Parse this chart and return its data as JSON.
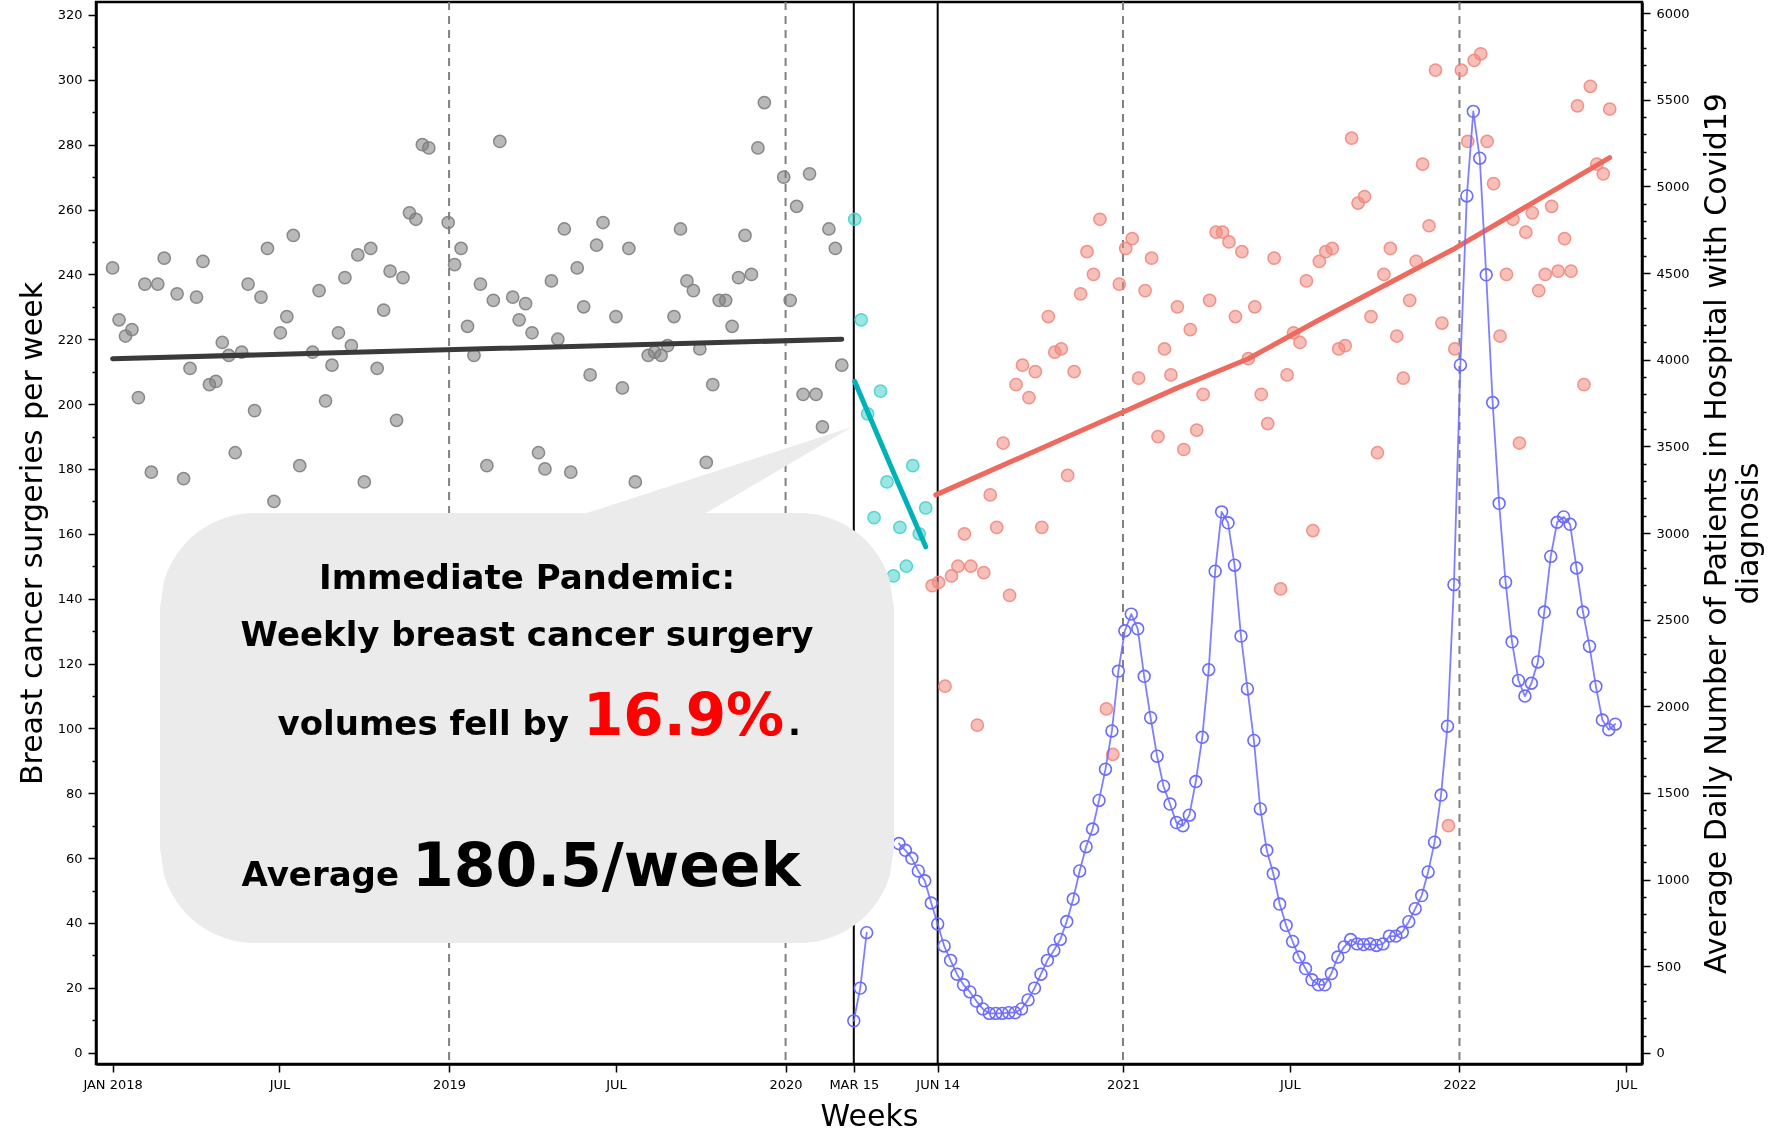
{
  "chart_data": {
    "type": "scatter",
    "xlabel": "Weeks",
    "ylabel": "Breast cancer surgeries per week",
    "y2label": "Average Daily Number of Patients in Hospital with Covid19 diagnosis",
    "annotations": [
      "Immediate Pandemic:",
      "Weekly breast cancer surgery",
      "volumes fell by",
      "16.9%",
      ".",
      "Average",
      "180.5/week"
    ],
    "xlim": [
      "2017-12-14",
      "2022-07-18"
    ],
    "xticks": [
      {
        "value": "2018-01-01",
        "label": "JAN 2018"
      },
      {
        "value": "2018-07-01",
        "label": "JUL"
      },
      {
        "value": "2019-01-01",
        "label": "2019"
      },
      {
        "value": "2019-07-01",
        "label": "JUL"
      },
      {
        "value": "2020-01-01",
        "label": "2020"
      },
      {
        "value": "2020-03-15",
        "label": "MAR 15"
      },
      {
        "value": "2020-06-14",
        "label": "JUN 14"
      },
      {
        "value": "2021-01-01",
        "label": "2021"
      },
      {
        "value": "2021-07-01",
        "label": "JUL"
      },
      {
        "value": "2022-01-01",
        "label": "2022"
      },
      {
        "value": "2022-07-01",
        "label": "JUL"
      }
    ],
    "ylim": [
      -3.5,
      324
    ],
    "yticks": [
      0,
      {
        "value": 10,
        "label": null
      },
      20,
      {
        "value": 30,
        "label": null
      },
      40,
      {
        "value": 50,
        "label": null
      },
      60,
      {
        "value": 70,
        "label": null
      },
      80,
      {
        "value": 90,
        "label": null
      },
      100,
      {
        "value": 110,
        "label": null
      },
      120,
      {
        "value": 130,
        "label": null
      },
      140,
      {
        "value": 150,
        "label": null
      },
      160,
      {
        "value": 170,
        "label": null
      },
      180,
      {
        "value": 190,
        "label": null
      },
      200,
      {
        "value": 210,
        "label": null
      },
      220,
      {
        "value": 230,
        "label": null
      },
      240,
      {
        "value": 250,
        "label": null
      },
      260,
      {
        "value": 270,
        "label": null
      },
      280,
      {
        "value": 290,
        "label": null
      },
      300,
      {
        "value": 310,
        "label": null
      },
      320
    ],
    "y2lim": [
      -64,
      6064
    ],
    "y2ticks": [
      0,
      {
        "value": 100,
        "label": null
      },
      {
        "value": 200,
        "label": null
      },
      {
        "value": 300,
        "label": null
      },
      {
        "value": 400,
        "label": null
      },
      500,
      {
        "value": 600,
        "label": null
      },
      {
        "value": 700,
        "label": null
      },
      {
        "value": 800,
        "label": null
      },
      {
        "value": 900,
        "label": null
      },
      1000,
      {
        "value": 1100,
        "label": null
      },
      {
        "value": 1200,
        "label": null
      },
      {
        "value": 1300,
        "label": null
      },
      {
        "value": 1400,
        "label": null
      },
      1500,
      {
        "value": 1600,
        "label": null
      },
      {
        "value": 1700,
        "label": null
      },
      {
        "value": 1800,
        "label": null
      },
      {
        "value": 1900,
        "label": null
      },
      2000,
      {
        "value": 2100,
        "label": null
      },
      {
        "value": 2200,
        "label": null
      },
      {
        "value": 2300,
        "label": null
      },
      {
        "value": 2400,
        "label": null
      },
      2500,
      {
        "value": 2600,
        "label": null
      },
      {
        "value": 2700,
        "label": null
      },
      {
        "value": 2800,
        "label": null
      },
      {
        "value": 2900,
        "label": null
      },
      3000,
      {
        "value": 3100,
        "label": null
      },
      {
        "value": 3200,
        "label": null
      },
      {
        "value": 3300,
        "label": null
      },
      {
        "value": 3400,
        "label": null
      },
      3500,
      {
        "value": 3600,
        "label": null
      },
      {
        "value": 3700,
        "label": null
      },
      {
        "value": 3800,
        "label": null
      },
      {
        "value": 3900,
        "label": null
      },
      4000,
      {
        "value": 4100,
        "label": null
      },
      {
        "value": 4200,
        "label": null
      },
      {
        "value": 4300,
        "label": null
      },
      {
        "value": 4400,
        "label": null
      },
      4500,
      {
        "value": 4600,
        "label": null
      },
      {
        "value": 4700,
        "label": null
      },
      {
        "value": 4800,
        "label": null
      },
      {
        "value": 4900,
        "label": null
      },
      5000,
      {
        "value": 5100,
        "label": null
      },
      {
        "value": 5200,
        "label": null
      },
      {
        "value": 5300,
        "label": null
      },
      {
        "value": 5400,
        "label": null
      },
      5500,
      {
        "value": 5600,
        "label": null
      },
      {
        "value": 5700,
        "label": null
      },
      {
        "value": 5800,
        "label": null
      },
      {
        "value": 5900,
        "label": null
      },
      6000
    ],
    "ref_lines": [
      {
        "axis": "x",
        "value": "2019-01-01",
        "color": "#808080",
        "line_style": "dashed"
      },
      {
        "axis": "x",
        "value": "2020-01-01",
        "color": "#808080",
        "line_style": "dashed"
      },
      {
        "axis": "x",
        "value": "2021-01-01",
        "color": "#808080",
        "line_style": "dashed"
      },
      {
        "axis": "x",
        "value": "2022-01-01",
        "color": "#808080",
        "line_style": "dashed"
      },
      {
        "axis": "x",
        "value": "2020-03-15",
        "color": "#000000",
        "line_style": "solid"
      },
      {
        "axis": "x",
        "value": "2020-06-14",
        "color": "#000000",
        "line_style": "solid"
      }
    ],
    "series": [
      {
        "color": "#7f7f7f",
        "marker": "circle",
        "x": [
          "2018-01-01",
          "2018-01-08",
          "2018-01-15",
          "2018-01-22",
          "2018-01-29",
          "2018-02-05",
          "2018-02-12",
          "2018-02-19",
          "2018-02-26",
          "2018-03-12",
          "2018-03-19",
          "2018-03-26",
          "2018-04-02",
          "2018-04-09",
          "2018-04-16",
          "2018-04-23",
          "2018-04-30",
          "2018-05-07",
          "2018-05-14",
          "2018-05-21",
          "2018-05-28",
          "2018-06-04",
          "2018-06-11",
          "2018-06-18",
          "2018-06-25",
          "2018-07-02",
          "2018-07-09",
          "2018-07-16",
          "2018-07-23",
          "2018-08-06",
          "2018-08-13",
          "2018-08-20",
          "2018-08-27",
          "2018-09-03",
          "2018-09-10",
          "2018-09-17",
          "2018-09-24",
          "2018-10-01",
          "2018-10-08",
          "2018-10-15",
          "2018-10-22",
          "2018-10-29",
          "2018-11-05",
          "2018-11-12",
          "2018-11-19",
          "2018-11-26",
          "2018-12-03",
          "2018-12-10",
          "2018-12-31",
          "2019-01-07",
          "2019-01-14",
          "2019-01-21",
          "2019-01-28",
          "2019-02-04",
          "2019-02-11",
          "2019-02-18",
          "2019-02-25",
          "2019-03-11",
          "2019-03-18",
          "2019-03-25",
          "2019-04-01",
          "2019-04-08",
          "2019-04-15",
          "2019-04-22",
          "2019-04-29",
          "2019-05-06",
          "2019-05-13",
          "2019-05-20",
          "2019-05-27",
          "2019-06-03",
          "2019-06-10",
          "2019-06-17",
          "2019-07-01",
          "2019-07-08",
          "2019-07-15",
          "2019-07-22",
          "2019-08-05",
          "2019-08-12",
          "2019-08-19",
          "2019-08-26",
          "2019-09-02",
          "2019-09-09",
          "2019-09-16",
          "2019-09-23",
          "2019-09-30",
          "2019-10-07",
          "2019-10-14",
          "2019-10-21",
          "2019-10-28",
          "2019-11-04",
          "2019-11-11",
          "2019-11-18",
          "2019-11-25",
          "2019-12-02",
          "2019-12-09",
          "2019-12-30",
          "2020-01-06",
          "2020-01-13",
          "2020-01-20",
          "2020-01-27",
          "2020-02-03",
          "2020-02-10",
          "2020-02-17",
          "2020-02-24",
          "2020-03-02"
        ],
        "values": [
          242,
          226,
          221,
          223,
          202,
          237,
          179,
          237,
          245,
          234,
          177,
          211,
          233,
          244,
          206,
          207,
          219,
          215,
          185,
          216,
          237,
          198,
          233,
          248,
          170,
          222,
          227,
          252,
          181,
          216,
          235,
          201,
          212,
          222,
          239,
          218,
          246,
          176,
          248,
          211,
          229,
          241,
          195,
          239,
          259,
          257,
          280,
          279,
          256,
          243,
          248,
          224,
          215,
          237,
          181,
          232,
          281,
          233,
          226,
          231,
          222,
          185,
          180,
          238,
          220,
          254,
          179,
          242,
          230,
          209,
          249,
          256,
          227,
          205,
          248,
          176,
          215,
          216,
          215,
          218,
          227,
          254,
          238,
          235,
          217,
          182,
          206,
          232,
          232,
          224,
          239,
          252,
          240,
          279,
          293,
          270,
          232,
          261,
          203,
          271,
          203,
          193,
          254,
          248,
          212
        ]
      },
      {
        "type": "line",
        "color": "#3a3a3a",
        "x": [
          "2018-01-01",
          "2020-03-02"
        ],
        "values": [
          214,
          220
        ]
      },
      {
        "color": "#48d1cc",
        "marker": "circle",
        "x": [
          "2020-03-16",
          "2020-03-23",
          "2020-03-30",
          "2020-04-06",
          "2020-04-13",
          "2020-04-20",
          "2020-04-27",
          "2020-05-04",
          "2020-05-11",
          "2020-05-18",
          "2020-05-25",
          "2020-06-01"
        ],
        "values": [
          257,
          226,
          197,
          165,
          204,
          176,
          147,
          162,
          150,
          181,
          160,
          168
        ]
      },
      {
        "type": "line",
        "color": "#00b2b8",
        "x": [
          "2020-03-16",
          "2020-04-27",
          "2020-06-01"
        ],
        "values": [
          207,
          179,
          156
        ]
      },
      {
        "color": "#f08a80",
        "marker": "circle",
        "x": [
          "2020-06-08",
          "2020-06-15",
          "2020-06-22",
          "2020-06-29",
          "2020-07-06",
          "2020-07-13",
          "2020-07-20",
          "2020-07-27",
          "2020-08-03",
          "2020-08-10",
          "2020-08-17",
          "2020-08-24",
          "2020-08-31",
          "2020-09-07",
          "2020-09-14",
          "2020-09-21",
          "2020-09-28",
          "2020-10-05",
          "2020-10-12",
          "2020-10-19",
          "2020-10-26",
          "2020-11-02",
          "2020-11-09",
          "2020-11-16",
          "2020-11-23",
          "2020-11-30",
          "2020-12-07",
          "2020-12-14",
          "2020-12-21",
          "2020-12-28",
          "2021-01-04",
          "2021-01-11",
          "2021-01-18",
          "2021-01-25",
          "2021-02-01",
          "2021-02-08",
          "2021-02-15",
          "2021-02-22",
          "2021-03-01",
          "2021-03-08",
          "2021-03-15",
          "2021-03-22",
          "2021-03-29",
          "2021-04-05",
          "2021-04-12",
          "2021-04-19",
          "2021-04-26",
          "2021-05-03",
          "2021-05-10",
          "2021-05-17",
          "2021-05-24",
          "2021-05-31",
          "2021-06-07",
          "2021-06-14",
          "2021-06-21",
          "2021-06-28",
          "2021-07-05",
          "2021-07-12",
          "2021-07-19",
          "2021-07-26",
          "2021-08-02",
          "2021-08-09",
          "2021-08-16",
          "2021-08-23",
          "2021-08-30",
          "2021-09-06",
          "2021-09-13",
          "2021-09-20",
          "2021-09-27",
          "2021-10-04",
          "2021-10-11",
          "2021-10-18",
          "2021-10-25",
          "2021-11-01",
          "2021-11-08",
          "2021-11-15",
          "2021-11-22",
          "2021-11-29",
          "2021-12-06",
          "2021-12-13",
          "2021-12-20",
          "2021-12-27",
          "2022-01-03",
          "2022-01-10",
          "2022-01-17",
          "2022-01-24",
          "2022-01-31",
          "2022-02-07",
          "2022-02-14",
          "2022-02-21",
          "2022-02-28",
          "2022-03-07",
          "2022-03-14",
          "2022-03-21",
          "2022-03-28",
          "2022-04-04",
          "2022-04-11",
          "2022-04-18",
          "2022-04-25",
          "2022-05-02",
          "2022-05-09",
          "2022-05-16",
          "2022-05-23",
          "2022-05-30",
          "2022-06-06",
          "2022-06-13"
        ],
        "values": [
          144,
          145,
          113,
          147,
          150,
          160,
          150,
          101,
          148,
          172,
          162,
          188,
          141,
          206,
          212,
          202,
          210,
          162,
          227,
          216,
          217,
          178,
          210,
          234,
          247,
          240,
          257,
          106,
          92,
          237,
          248,
          251,
          208,
          235,
          245,
          190,
          217,
          209,
          230,
          186,
          223,
          192,
          203,
          232,
          253,
          253,
          250,
          227,
          247,
          214,
          230,
          203,
          194,
          245,
          143,
          209,
          222,
          219,
          238,
          161,
          244,
          247,
          248,
          217,
          218,
          282,
          262,
          264,
          227,
          185,
          240,
          248,
          221,
          208,
          232,
          244,
          274,
          255,
          303,
          225,
          70,
          217,
          303,
          281,
          306,
          308,
          281,
          268,
          221,
          240,
          257,
          188,
          253,
          259,
          235,
          240,
          261,
          241,
          251,
          241,
          292,
          206,
          298,
          274,
          271,
          291
        ]
      },
      {
        "type": "line",
        "color": "#ee6a5f",
        "x": [
          "2020-06-12",
          "2020-12-28",
          "2021-03-01",
          "2021-05-17",
          "2021-08-02",
          "2021-12-27",
          "2022-06-13"
        ],
        "values": [
          172,
          197,
          205,
          214,
          226,
          248,
          276
        ]
      },
      {
        "type": "line",
        "axis": "y2",
        "color": "#6a6aff",
        "marker": "circle",
        "x": [
          "2020-03-15",
          "2020-03-22",
          "2020-03-29",
          "2020-04-05",
          "2020-04-12",
          "2020-04-19",
          "2020-04-26",
          "2020-05-03",
          "2020-05-10",
          "2020-05-17",
          "2020-05-24",
          "2020-05-31",
          "2020-06-07",
          "2020-06-14",
          "2020-06-21",
          "2020-06-28",
          "2020-07-05",
          "2020-07-12",
          "2020-07-19",
          "2020-07-26",
          "2020-08-02",
          "2020-08-09",
          "2020-08-16",
          "2020-08-23",
          "2020-08-30",
          "2020-09-06",
          "2020-09-13",
          "2020-09-20",
          "2020-09-27",
          "2020-10-04",
          "2020-10-11",
          "2020-10-18",
          "2020-10-25",
          "2020-11-01",
          "2020-11-08",
          "2020-11-15",
          "2020-11-22",
          "2020-11-29",
          "2020-12-06",
          "2020-12-13",
          "2020-12-20",
          "2020-12-27",
          "2021-01-03",
          "2021-01-10",
          "2021-01-17",
          "2021-01-24",
          "2021-01-31",
          "2021-02-07",
          "2021-02-14",
          "2021-02-21",
          "2021-02-28",
          "2021-03-07",
          "2021-03-14",
          "2021-03-21",
          "2021-03-28",
          "2021-04-04",
          "2021-04-11",
          "2021-04-18",
          "2021-04-25",
          "2021-05-02",
          "2021-05-09",
          "2021-05-16",
          "2021-05-23",
          "2021-05-30",
          "2021-06-06",
          "2021-06-13",
          "2021-06-20",
          "2021-06-27",
          "2021-07-04",
          "2021-07-11",
          "2021-07-18",
          "2021-07-25",
          "2021-08-01",
          "2021-08-08",
          "2021-08-15",
          "2021-08-22",
          "2021-08-29",
          "2021-09-05",
          "2021-09-12",
          "2021-09-19",
          "2021-09-26",
          "2021-10-03",
          "2021-10-10",
          "2021-10-17",
          "2021-10-24",
          "2021-10-31",
          "2021-11-07",
          "2021-11-14",
          "2021-11-21",
          "2021-11-28",
          "2021-12-05",
          "2021-12-12",
          "2021-12-19",
          "2021-12-26",
          "2022-01-02",
          "2022-01-09",
          "2022-01-16",
          "2022-01-23",
          "2022-01-30",
          "2022-02-06",
          "2022-02-13",
          "2022-02-20",
          "2022-02-27",
          "2022-03-06",
          "2022-03-13",
          "2022-03-20",
          "2022-03-27",
          "2022-04-03",
          "2022-04-10",
          "2022-04-17",
          "2022-04-24",
          "2022-05-01",
          "2022-05-08",
          "2022-05-15",
          "2022-05-22",
          "2022-05-29",
          "2022-06-05",
          "2022-06-12",
          "2022-06-19"
        ],
        "values": [
          185,
          374,
          694,
          null,
          null,
          null,
          null,
          1208,
          1169,
          1123,
          1050,
          993,
          865,
          744,
          617,
          534,
          454,
          393,
          352,
          299,
          254,
          228,
          228,
          228,
          232,
          232,
          254,
          306,
          374,
          454,
          534,
          591,
          655,
          758,
          888,
          1050,
          1190,
          1292,
          1457,
          1637,
          1858,
          2203,
          2436,
          2532,
          2447,
          2173,
          1934,
          1712,
          1539,
          1436,
          1329,
          1311,
          1372,
          1566,
          1821,
          2211,
          2780,
          3122,
          3059,
          2814,
          2405,
          2100,
          1803,
          1408,
          1169,
          1035,
          859,
          736,
          643,
          553,
          487,
          422,
          393,
          393,
          458,
          553,
          612,
          654,
          629,
          625,
          629,
          620,
          629,
          674,
          674,
          696,
          757,
          832,
          908,
          1044,
          1216,
          1488,
          1885,
          2702,
          3970,
          4945,
          5433,
          5163,
          4490,
          3753,
          3171,
          2716,
          2372,
          2149,
          2059,
          2133,
          2256,
          2544,
          2865,
          3062,
          3093,
          3050,
          2798,
          2544,
          2347,
          2115,
          1921,
          1865,
          1897
        ]
      }
    ]
  }
}
